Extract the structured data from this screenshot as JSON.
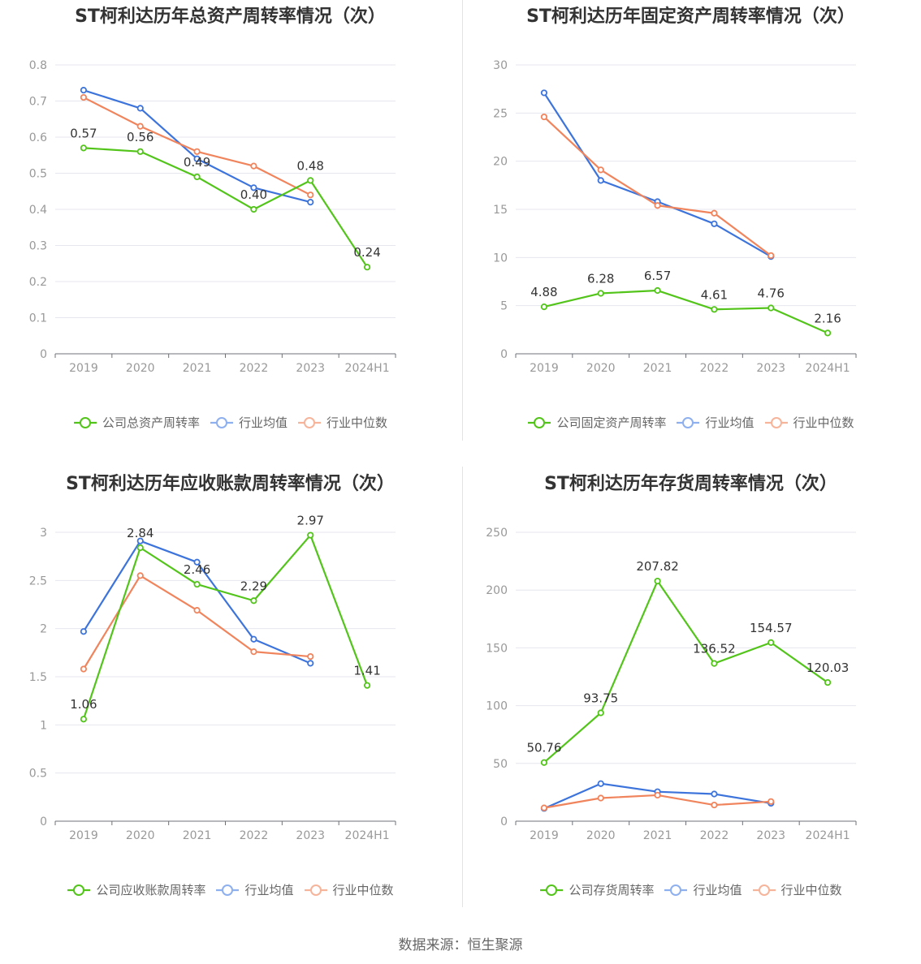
{
  "source": "数据来源：恒生聚源",
  "colors": {
    "company": "#52c41a",
    "avg": "#3d74db",
    "median": "#f0845c",
    "grid": "#e6e6ef",
    "axis": "#6e7079",
    "label": "#333333",
    "tick": "#999999"
  },
  "chart_data": [
    {
      "type": "line",
      "title": "ST柯利达历年总资产周转率情况（次）",
      "categories": [
        "2019",
        "2020",
        "2021",
        "2022",
        "2023",
        "2024H1"
      ],
      "yticks": [
        "0",
        "0.1",
        "0.2",
        "0.3",
        "0.4",
        "0.5",
        "0.6",
        "0.7",
        "0.8"
      ],
      "ylim": [
        0,
        0.8
      ],
      "series": [
        {
          "name": "公司总资产周转率",
          "values": [
            0.57,
            0.56,
            0.49,
            0.4,
            0.48,
            0.24
          ],
          "labels": [
            "0.57",
            "0.56",
            "0.49",
            "0.40",
            "0.48",
            "0.24"
          ]
        },
        {
          "name": "行业均值",
          "values": [
            0.73,
            0.68,
            0.54,
            0.46,
            0.42,
            null
          ]
        },
        {
          "name": "行业中位数",
          "values": [
            0.71,
            0.63,
            0.56,
            0.52,
            0.44,
            null
          ]
        }
      ]
    },
    {
      "type": "line",
      "title": "ST柯利达历年固定资产周转率情况（次）",
      "categories": [
        "2019",
        "2020",
        "2021",
        "2022",
        "2023",
        "2024H1"
      ],
      "yticks": [
        "0",
        "5",
        "10",
        "15",
        "20",
        "25",
        "30"
      ],
      "ylim": [
        0,
        30
      ],
      "series": [
        {
          "name": "公司固定资产周转率",
          "values": [
            4.88,
            6.28,
            6.57,
            4.61,
            4.76,
            2.16
          ],
          "labels": [
            "4.88",
            "6.28",
            "6.57",
            "4.61",
            "4.76",
            "2.16"
          ]
        },
        {
          "name": "行业均值",
          "values": [
            27.1,
            18.0,
            15.8,
            13.5,
            10.1,
            null
          ]
        },
        {
          "name": "行业中位数",
          "values": [
            24.6,
            19.1,
            15.4,
            14.6,
            10.2,
            null
          ]
        }
      ]
    },
    {
      "type": "line",
      "title": "ST柯利达历年应收账款周转率情况（次）",
      "categories": [
        "2019",
        "2020",
        "2021",
        "2022",
        "2023",
        "2024H1"
      ],
      "yticks": [
        "0",
        "0.5",
        "1",
        "1.5",
        "2",
        "2.5",
        "3"
      ],
      "ylim": [
        0,
        3
      ],
      "series": [
        {
          "name": "公司应收账款周转率",
          "values": [
            1.06,
            2.84,
            2.46,
            2.29,
            2.97,
            1.41
          ],
          "labels": [
            "1.06",
            "2.84",
            "2.46",
            "2.29",
            "2.97",
            "1.41"
          ]
        },
        {
          "name": "行业均值",
          "values": [
            1.97,
            2.91,
            2.69,
            1.89,
            1.64,
            null
          ]
        },
        {
          "name": "行业中位数",
          "values": [
            1.58,
            2.55,
            2.19,
            1.76,
            1.71,
            null
          ]
        }
      ]
    },
    {
      "type": "line",
      "title": "ST柯利达历年存货周转率情况（次）",
      "categories": [
        "2019",
        "2020",
        "2021",
        "2022",
        "2023",
        "2024H1"
      ],
      "yticks": [
        "0",
        "50",
        "100",
        "150",
        "200",
        "250"
      ],
      "ylim": [
        0,
        250
      ],
      "series": [
        {
          "name": "公司存货周转率",
          "values": [
            50.76,
            93.75,
            207.82,
            136.52,
            154.57,
            120.03
          ],
          "labels": [
            "50.76",
            "93.75",
            "207.82",
            "136.52",
            "154.57",
            "120.03"
          ]
        },
        {
          "name": "行业均值",
          "values": [
            11,
            32.5,
            25.5,
            23.5,
            15.5,
            null
          ]
        },
        {
          "name": "行业中位数",
          "values": [
            11.5,
            20,
            22.5,
            14,
            17,
            null
          ]
        }
      ]
    }
  ]
}
